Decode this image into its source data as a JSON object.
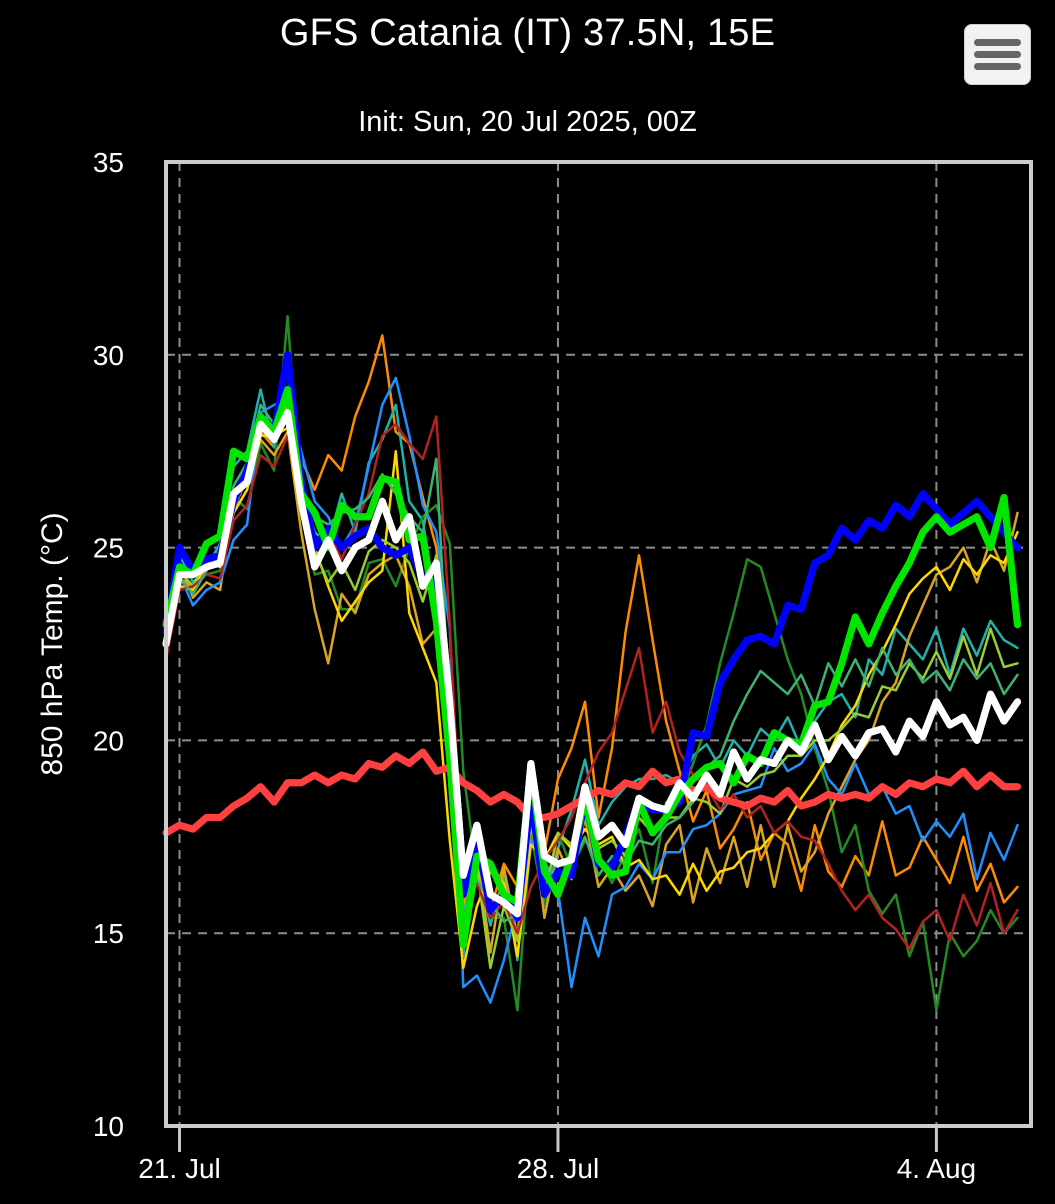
{
  "header": {
    "title": "GFS Catania (IT) 37.5N, 15E",
    "subtitle": "Init: Sun, 20 Jul 2025, 00Z",
    "menu_icon": "hamburger-menu-icon"
  },
  "chart_data": {
    "type": "line",
    "title": "GFS Catania (IT) 37.5N, 15E",
    "subtitle": "Init: Sun, 20 Jul 2025, 00Z",
    "ylabel": "850 hPa Temp. (°C)",
    "xlabel": "",
    "x_start": "2025-07-20T18:00Z",
    "x_end": "2025-08-05T18:00Z",
    "x_step_hours": 6,
    "ylim": [
      10,
      35
    ],
    "yticks": [
      10,
      15,
      20,
      25,
      30,
      35
    ],
    "xticks": [
      {
        "date": "2025-07-21T00:00Z",
        "label": "21. Jul"
      },
      {
        "date": "2025-07-28T00:00Z",
        "label": "28. Jul"
      },
      {
        "date": "2025-08-04T00:00Z",
        "label": "4. Aug"
      }
    ],
    "grid": true,
    "legend": "none",
    "series": [
      {
        "color": "#ffffff",
        "values": [
          22.5,
          24.3,
          24.3,
          24.5,
          24.6,
          26.4,
          26.7,
          28.2,
          27.8,
          28.5,
          26.2,
          24.5,
          25.2,
          24.4,
          25.0,
          25.2,
          26.2,
          25.2,
          25.8,
          24.0,
          24.6,
          21.0,
          16.5,
          17.8,
          16.0,
          15.8,
          15.5,
          19.4,
          17.0,
          16.8,
          16.9,
          18.8,
          17.5,
          17.8,
          17.3,
          18.5,
          18.3,
          18.2,
          18.9,
          18.5,
          19.1,
          18.6,
          19.7,
          19.0,
          19.5,
          19.4,
          20.0,
          19.7,
          20.4,
          19.5,
          20.1,
          19.6,
          20.2,
          20.3,
          19.7,
          20.5,
          20.1,
          21.0,
          20.4,
          20.6,
          20.0,
          21.2,
          20.5,
          21.0
        ]
      },
      {
        "color": "#0000ff",
        "values": [
          22.8,
          25.0,
          24.4,
          24.7,
          24.8,
          26.2,
          27.0,
          28.3,
          28.0,
          30.0,
          26.7,
          25.0,
          25.5,
          25.0,
          25.3,
          25.5,
          25.0,
          24.8,
          25.0,
          24.2,
          24.3,
          21.0,
          16.0,
          17.5,
          15.6,
          16.0,
          15.4,
          18.5,
          16.0,
          16.6,
          16.5,
          18.5,
          16.8,
          16.7,
          17.5,
          18.4,
          18.2,
          18.2,
          18.4,
          20.2,
          20.1,
          21.5,
          22.1,
          22.6,
          22.7,
          22.5,
          23.5,
          23.4,
          24.6,
          24.8,
          25.5,
          25.2,
          25.7,
          25.5,
          26.1,
          25.8,
          26.4,
          26.0,
          25.6,
          25.9,
          26.2,
          25.8,
          25.4,
          25.0
        ]
      },
      {
        "color": "#00e600",
        "values": [
          23.0,
          24.5,
          24.3,
          25.1,
          25.3,
          27.5,
          27.3,
          28.4,
          28.0,
          29.1,
          26.4,
          25.9,
          25.0,
          26.1,
          25.8,
          25.8,
          26.8,
          26.7,
          25.2,
          25.3,
          23.1,
          19.5,
          14.7,
          17.0,
          16.8,
          16.0,
          15.8,
          19.3,
          16.6,
          16.0,
          17.0,
          18.5,
          16.9,
          16.5,
          16.6,
          18.4,
          17.6,
          18.0,
          18.6,
          19.0,
          19.3,
          19.4,
          18.9,
          19.6,
          19.4,
          20.2,
          20.0,
          19.9,
          20.9,
          21.0,
          22.0,
          23.2,
          22.5,
          23.3,
          24.0,
          24.6,
          25.4,
          25.8,
          25.4,
          25.6,
          25.8,
          25.0,
          26.3,
          23.0
        ]
      },
      {
        "color": "#ff4040",
        "values": [
          17.6,
          17.8,
          17.7,
          18.0,
          18.0,
          18.3,
          18.5,
          18.8,
          18.4,
          18.9,
          18.9,
          19.1,
          18.9,
          19.1,
          19.0,
          19.4,
          19.3,
          19.6,
          19.4,
          19.7,
          19.2,
          19.3,
          18.9,
          18.7,
          18.4,
          18.6,
          18.4,
          18.0,
          18.0,
          18.1,
          18.3,
          18.5,
          18.7,
          18.6,
          18.9,
          18.8,
          19.2,
          18.9,
          19.0,
          18.7,
          18.8,
          18.5,
          18.4,
          18.3,
          18.5,
          18.4,
          18.7,
          18.3,
          18.4,
          18.6,
          18.5,
          18.6,
          18.5,
          18.8,
          18.6,
          18.9,
          18.8,
          19.0,
          18.9,
          19.2,
          18.8,
          19.1,
          18.8,
          18.8
        ]
      },
      {
        "color": "#ff8c00",
        "values": [
          22.6,
          24.2,
          24.0,
          24.5,
          24.6,
          26.0,
          26.8,
          28.0,
          27.6,
          28.8,
          27.3,
          26.5,
          27.4,
          27.0,
          28.4,
          29.3,
          30.5,
          28.0,
          27.7,
          26.3,
          25.0,
          21.2,
          15.0,
          16.4,
          15.6,
          16.8,
          16.2,
          17.4,
          17.1,
          19.0,
          19.8,
          21.0,
          18.0,
          19.8,
          22.8,
          24.8,
          22.6,
          20.5,
          19.2,
          17.9,
          18.7,
          17.2,
          17.7,
          18.4,
          16.9,
          17.6,
          17.3,
          16.1,
          17.8,
          16.6,
          16.2,
          17.0,
          16.5,
          17.9,
          16.5,
          16.7,
          17.5,
          16.9,
          16.3,
          17.5,
          16.1,
          16.8,
          15.8,
          16.2
        ]
      },
      {
        "color": "#20b2aa",
        "values": [
          22.9,
          24.8,
          24.1,
          24.5,
          25.1,
          27.1,
          27.5,
          29.1,
          27.6,
          28.6,
          26.6,
          25.4,
          25.1,
          26.4,
          25.4,
          27.2,
          27.8,
          28.7,
          26.2,
          25.7,
          23.5,
          19.4,
          14.4,
          16.9,
          15.2,
          16.5,
          14.3,
          18.6,
          15.7,
          17.2,
          18.2,
          19.5,
          17.8,
          18.4,
          18.8,
          19.0,
          19.0,
          19.1,
          18.9,
          19.6,
          19.9,
          19.3,
          20.0,
          19.6,
          20.3,
          20.0,
          20.6,
          19.8,
          20.5,
          21.0,
          21.2,
          20.6,
          22.1,
          21.7,
          22.9,
          22.5,
          22.1,
          22.9,
          21.7,
          22.9,
          22.2,
          23.1,
          22.6,
          22.4
        ]
      },
      {
        "color": "#228b22",
        "values": [
          22.2,
          24.0,
          24.0,
          24.3,
          24.4,
          26.3,
          26.0,
          27.7,
          27.0,
          31.0,
          26.0,
          24.3,
          24.4,
          23.4,
          23.4,
          24.6,
          24.7,
          24.0,
          25.0,
          25.8,
          26.1,
          25.1,
          19.2,
          16.5,
          15.4,
          15.4,
          13.0,
          17.6,
          15.7,
          17.6,
          16.7,
          17.4,
          17.0,
          16.3,
          17.1,
          17.7,
          16.3,
          18.4,
          18.5,
          19.4,
          20.4,
          22.0,
          23.3,
          24.7,
          24.5,
          23.3,
          22.1,
          21.2,
          19.8,
          18.7,
          17.1,
          17.8,
          16.1,
          15.5,
          16.0,
          14.4,
          15.3,
          13.0,
          15.0,
          14.4,
          14.8,
          15.6,
          15.0,
          15.4
        ]
      },
      {
        "color": "#daa520",
        "values": [
          22.4,
          24.6,
          23.7,
          24.1,
          23.9,
          26.2,
          26.7,
          27.8,
          27.4,
          28.0,
          25.4,
          23.4,
          22.0,
          23.8,
          23.3,
          24.3,
          24.6,
          24.8,
          24.0,
          22.5,
          22.9,
          19.9,
          15.7,
          17.1,
          14.5,
          16.7,
          14.9,
          18.3,
          15.4,
          17.2,
          16.4,
          18.0,
          16.2,
          16.7,
          16.1,
          16.5,
          15.7,
          17.3,
          17.8,
          15.8,
          17.2,
          16.3,
          17.5,
          16.2,
          17.8,
          16.2,
          17.8,
          16.6,
          17.1,
          18.1,
          18.8,
          19.5,
          20.0,
          21.0,
          21.5,
          22.7,
          23.5,
          24.3,
          24.5,
          25.0,
          24.1,
          25.2,
          24.4,
          25.9
        ]
      },
      {
        "color": "#1e90ff",
        "values": [
          22.7,
          24.3,
          23.5,
          23.9,
          24.1,
          25.2,
          25.6,
          28.5,
          28.7,
          28.9,
          27.5,
          26.2,
          25.8,
          25.0,
          25.6,
          27.1,
          28.7,
          29.4,
          27.9,
          26.1,
          25.4,
          22.9,
          13.6,
          13.9,
          13.2,
          14.3,
          15.7,
          17.4,
          16.9,
          16.1,
          13.6,
          15.4,
          14.4,
          16.0,
          16.2,
          16.8,
          16.4,
          17.1,
          17.1,
          17.7,
          17.8,
          18.1,
          18.6,
          18.7,
          18.8,
          19.8,
          19.2,
          19.4,
          19.9,
          19.0,
          18.6,
          19.4,
          18.6,
          18.8,
          18.1,
          18.3,
          17.4,
          17.9,
          17.5,
          18.1,
          16.4,
          17.6,
          16.9,
          17.8
        ]
      },
      {
        "color": "#ffd700",
        "values": [
          22.3,
          24.0,
          23.9,
          24.6,
          24.5,
          25.9,
          26.5,
          27.9,
          27.9,
          28.1,
          26.8,
          25.0,
          24.0,
          23.1,
          23.6,
          24.1,
          24.4,
          27.5,
          23.3,
          22.4,
          21.5,
          17.4,
          14.1,
          15.7,
          16.6,
          16.3,
          14.4,
          17.3,
          16.9,
          17.6,
          17.2,
          17.7,
          17.3,
          17.5,
          16.7,
          16.9,
          16.4,
          16.5,
          16.0,
          16.8,
          16.1,
          16.6,
          16.7,
          17.1,
          17.2,
          17.6,
          17.9,
          18.5,
          19.0,
          19.6,
          20.4,
          20.9,
          21.7,
          22.3,
          23.0,
          23.8,
          24.2,
          24.5,
          23.9,
          24.7,
          24.3,
          24.8,
          24.6,
          25.4
        ]
      },
      {
        "color": "#9acd32",
        "values": [
          22.6,
          24.4,
          24.0,
          24.7,
          24.9,
          26.4,
          26.8,
          28.3,
          28.1,
          28.6,
          26.7,
          24.9,
          24.1,
          24.6,
          23.9,
          24.9,
          25.2,
          25.0,
          24.6,
          23.6,
          24.8,
          20.8,
          15.3,
          16.7,
          14.1,
          15.7,
          14.8,
          17.8,
          16.0,
          17.6,
          17.3,
          18.9,
          17.2,
          17.4,
          17.0,
          18.0,
          17.6,
          18.0,
          18.0,
          18.5,
          18.4,
          18.1,
          19.0,
          18.8,
          19.1,
          19.2,
          19.6,
          19.6,
          20.0,
          20.0,
          20.3,
          20.7,
          20.6,
          21.4,
          21.3,
          22.0,
          21.6,
          22.3,
          21.6,
          22.7,
          21.7,
          22.9,
          21.9,
          22.0
        ]
      },
      {
        "color": "#b22222",
        "values": [
          22.1,
          23.9,
          24.0,
          24.3,
          24.2,
          25.7,
          26.1,
          27.4,
          27.1,
          27.9,
          26.3,
          24.9,
          25.4,
          24.7,
          25.6,
          26.4,
          27.9,
          28.2,
          27.7,
          27.3,
          28.4,
          23.0,
          16.1,
          16.3,
          15.4,
          15.8,
          15.0,
          16.2,
          16.9,
          17.4,
          18.0,
          18.9,
          19.7,
          20.2,
          21.3,
          22.4,
          20.2,
          21.0,
          19.7,
          19.1,
          18.8,
          18.2,
          18.6,
          18.0,
          18.3,
          17.6,
          17.9,
          17.5,
          17.4,
          16.8,
          16.1,
          15.6,
          16.0,
          15.4,
          15.1,
          14.6,
          15.3,
          15.6,
          14.8,
          16.0,
          15.2,
          16.3,
          15.0,
          15.6
        ]
      },
      {
        "color": "#3cb371",
        "values": [
          22.5,
          24.2,
          23.8,
          24.4,
          24.8,
          26.6,
          27.2,
          28.7,
          28.2,
          28.4,
          26.5,
          25.8,
          25.6,
          25.9,
          26.0,
          26.3,
          26.9,
          26.4,
          25.8,
          25.4,
          27.3,
          20.7,
          15.6,
          16.4,
          15.8,
          15.3,
          15.5,
          18.0,
          16.4,
          16.8,
          16.7,
          17.5,
          16.5,
          17.0,
          16.8,
          17.4,
          17.3,
          17.8,
          18.0,
          18.4,
          19.3,
          19.6,
          20.5,
          21.2,
          21.8,
          21.5,
          21.2,
          21.7,
          20.9,
          22.0,
          21.4,
          22.1,
          21.4,
          22.4,
          21.7,
          22.1,
          21.5,
          21.8,
          21.3,
          22.1,
          21.6,
          22.0,
          21.2,
          21.7
        ]
      }
    ]
  }
}
